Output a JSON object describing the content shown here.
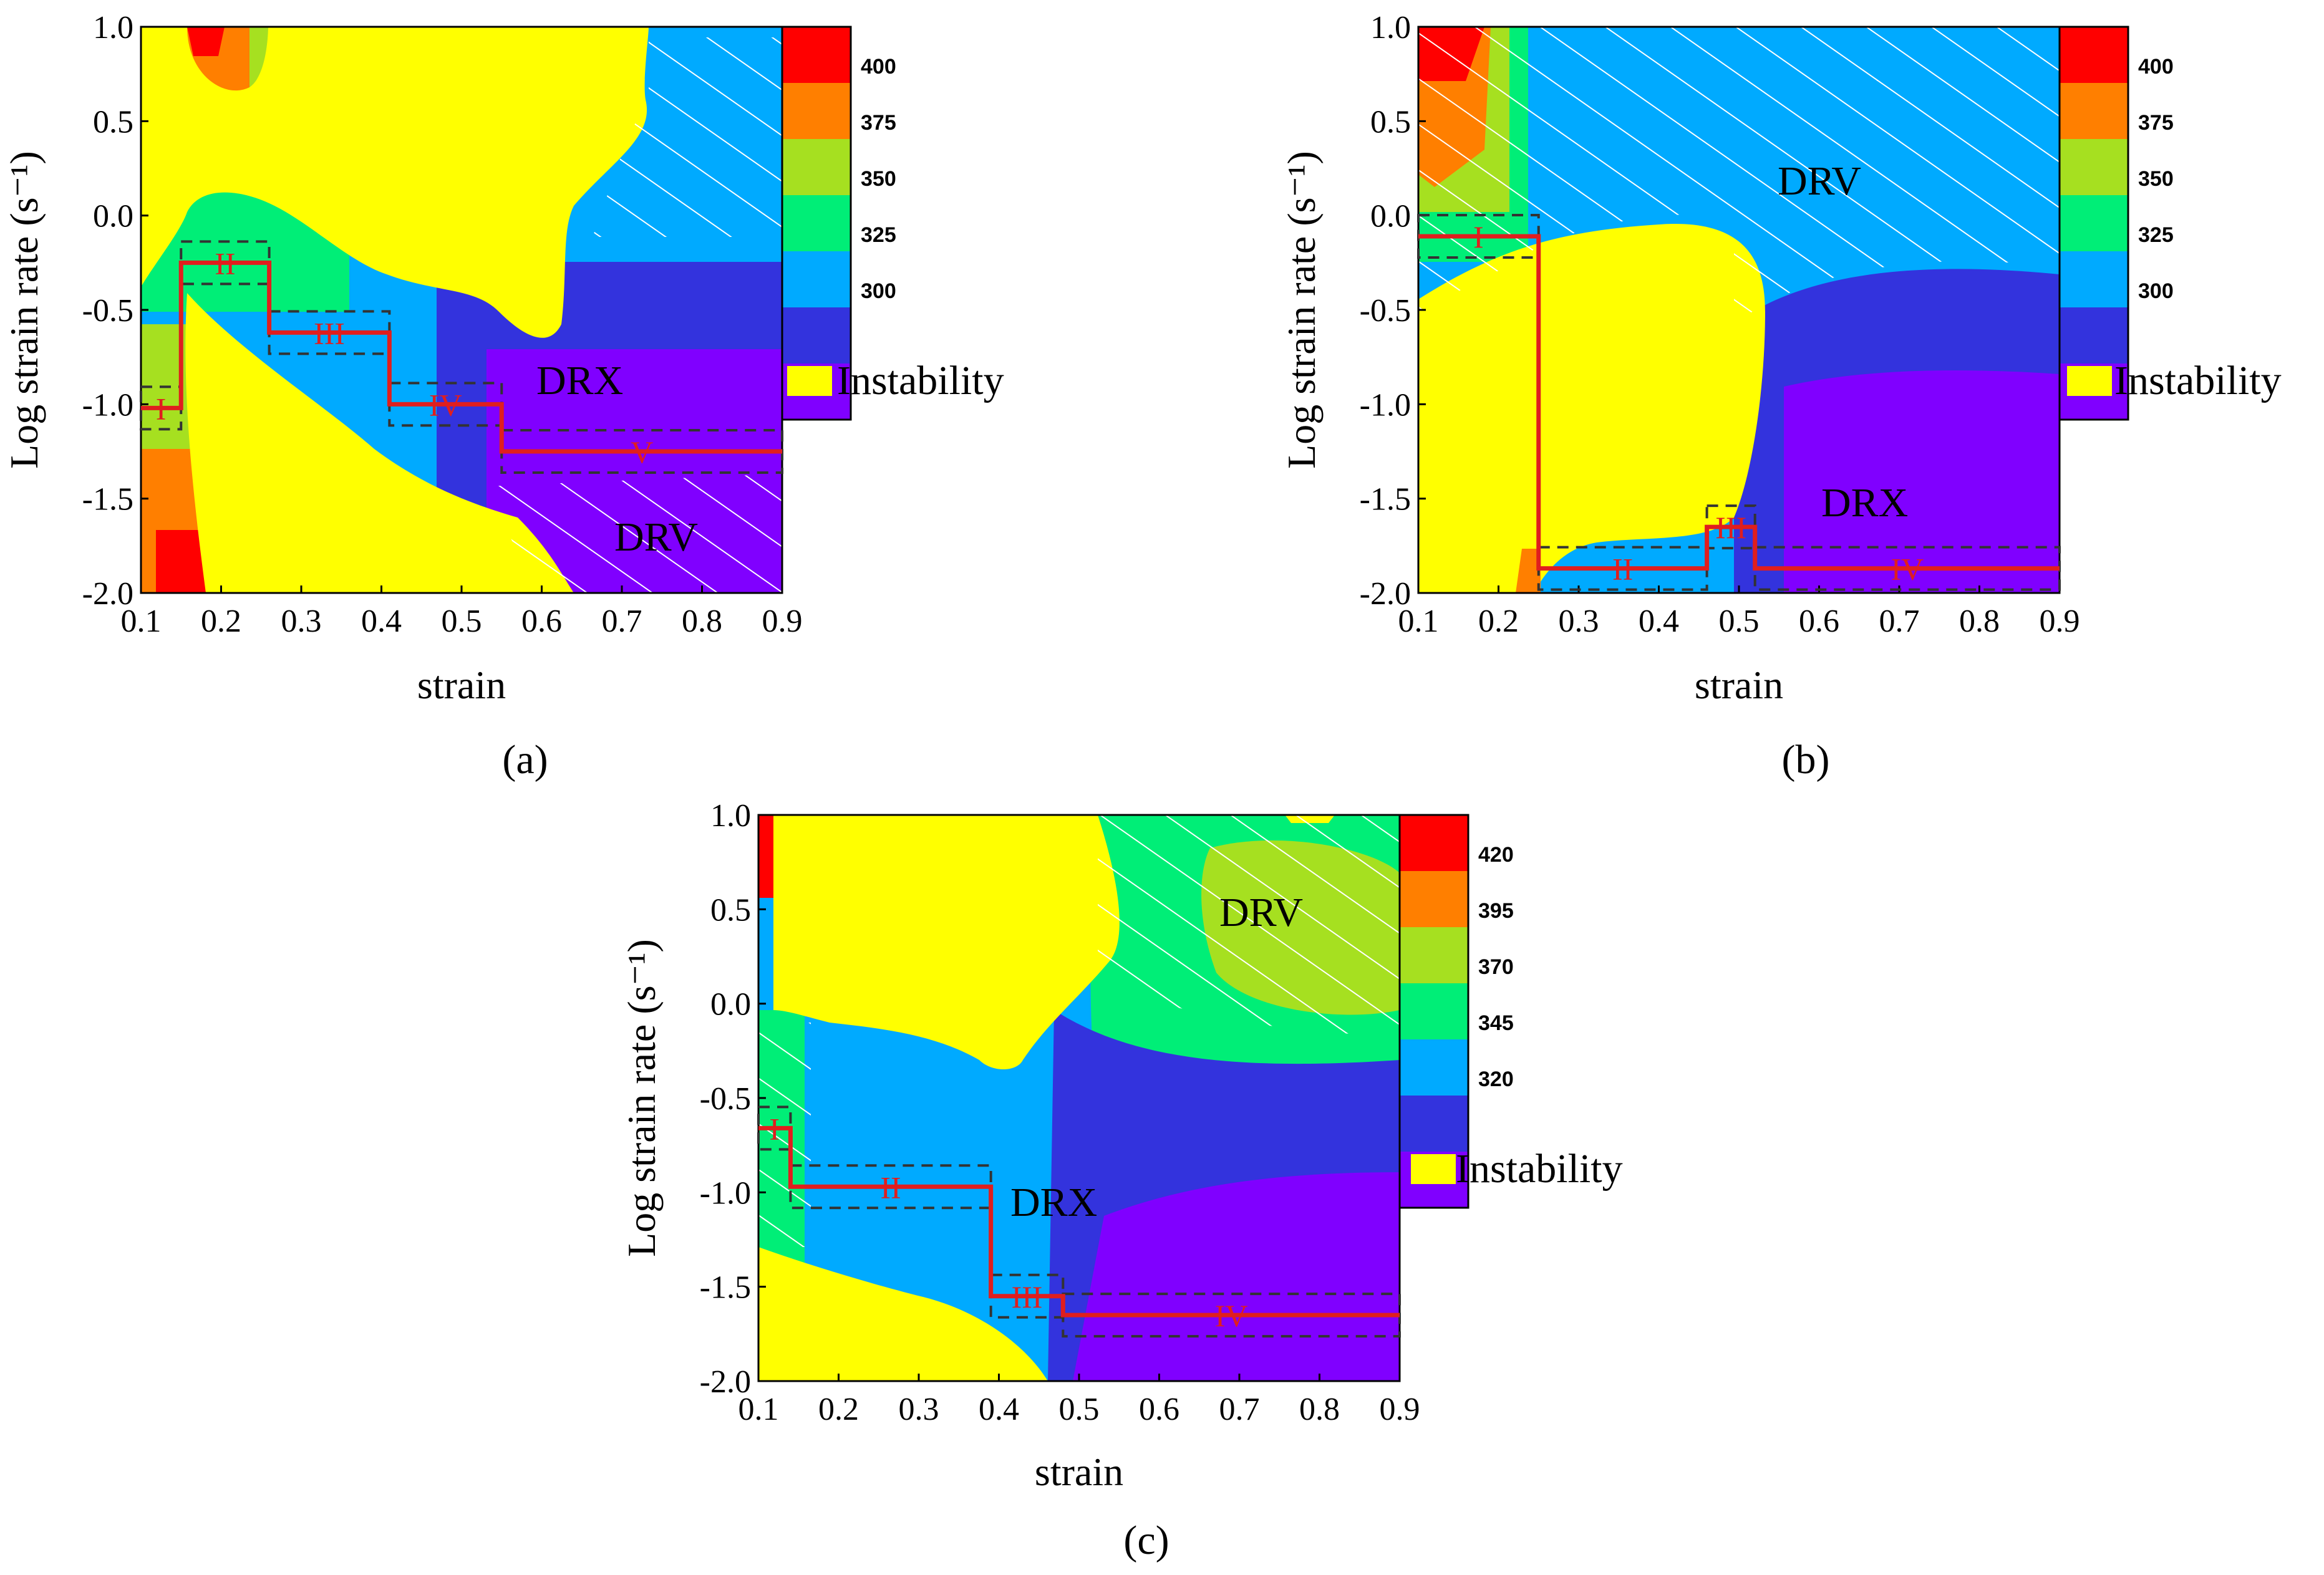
{
  "figure": {
    "panel_labels": [
      "(a)",
      "(b)",
      "(c)"
    ],
    "region_labels": {
      "drx": "DRX",
      "drv": "DRV"
    },
    "legend_instability": "Instability",
    "colors": {
      "instability": "#ffff00",
      "path": "#e01e1e",
      "bands": [
        "#8000ff",
        "#3333dd",
        "#00aaff",
        "#00ee77",
        "#a6e020",
        "#ff7f00",
        "#ff0000"
      ]
    }
  },
  "chart_data": [
    {
      "id": "a",
      "type": "heatmap",
      "title": "",
      "xlabel": "strain",
      "ylabel": "Log strain rate (s⁻¹)",
      "xlim": [
        0.1,
        0.9
      ],
      "ylim": [
        -2.0,
        1.0
      ],
      "xticks": [
        "0.1",
        "0.2",
        "0.3",
        "0.4",
        "0.5",
        "0.6",
        "0.7",
        "0.8",
        "0.9"
      ],
      "yticks": [
        "1.0",
        "0.5",
        "0.0",
        "-0.5",
        "-1.0",
        "-1.5",
        "-2.0"
      ],
      "colorbar_ticks": [
        "400",
        "375",
        "350",
        "325",
        "300"
      ],
      "path_steps": [
        {
          "label": "I",
          "x0": 0.1,
          "x1": 0.15,
          "y": -1.02
        },
        {
          "label": "II",
          "x0": 0.15,
          "x1": 0.26,
          "y": -0.25
        },
        {
          "label": "III",
          "x0": 0.26,
          "x1": 0.41,
          "y": -0.62
        },
        {
          "label": "IV",
          "x0": 0.41,
          "x1": 0.55,
          "y": -1.0
        },
        {
          "label": "V",
          "x0": 0.55,
          "x1": 0.9,
          "y": -1.25
        }
      ]
    },
    {
      "id": "b",
      "type": "heatmap",
      "title": "",
      "xlabel": "strain",
      "ylabel": "Log strain rate (s⁻¹)",
      "xlim": [
        0.1,
        0.9
      ],
      "ylim": [
        -2.0,
        1.0
      ],
      "xticks": [
        "0.1",
        "0.2",
        "0.3",
        "0.4",
        "0.5",
        "0.6",
        "0.7",
        "0.8",
        "0.9"
      ],
      "yticks": [
        "1.0",
        "0.5",
        "0.0",
        "-0.5",
        "-1.0",
        "-1.5",
        "-2.0"
      ],
      "colorbar_ticks": [
        "400",
        "375",
        "350",
        "325",
        "300"
      ],
      "path_steps": [
        {
          "label": "I",
          "x0": 0.1,
          "x1": 0.25,
          "y": -0.11
        },
        {
          "label": "II",
          "x0": 0.25,
          "x1": 0.46,
          "y": -1.87
        },
        {
          "label": "III",
          "x0": 0.46,
          "x1": 0.52,
          "y": -1.65
        },
        {
          "label": "IV",
          "x0": 0.52,
          "x1": 0.9,
          "y": -1.87
        }
      ]
    },
    {
      "id": "c",
      "type": "heatmap",
      "title": "",
      "xlabel": "strain",
      "ylabel": "Log strain rate (s⁻¹)",
      "xlim": [
        0.1,
        0.9
      ],
      "ylim": [
        -2.0,
        1.0
      ],
      "xticks": [
        "0.1",
        "0.2",
        "0.3",
        "0.4",
        "0.5",
        "0.6",
        "0.7",
        "0.8",
        "0.9"
      ],
      "yticks": [
        "1.0",
        "0.5",
        "0.0",
        "-0.5",
        "-1.0",
        "-1.5",
        "-2.0"
      ],
      "colorbar_ticks": [
        "420",
        "395",
        "370",
        "345",
        "320"
      ],
      "path_steps": [
        {
          "label": "I",
          "x0": 0.1,
          "x1": 0.14,
          "y": -0.66
        },
        {
          "label": "II",
          "x0": 0.14,
          "x1": 0.39,
          "y": -0.97
        },
        {
          "label": "III",
          "x0": 0.39,
          "x1": 0.48,
          "y": -1.55
        },
        {
          "label": "IV",
          "x0": 0.48,
          "x1": 0.9,
          "y": -1.65
        }
      ]
    }
  ]
}
